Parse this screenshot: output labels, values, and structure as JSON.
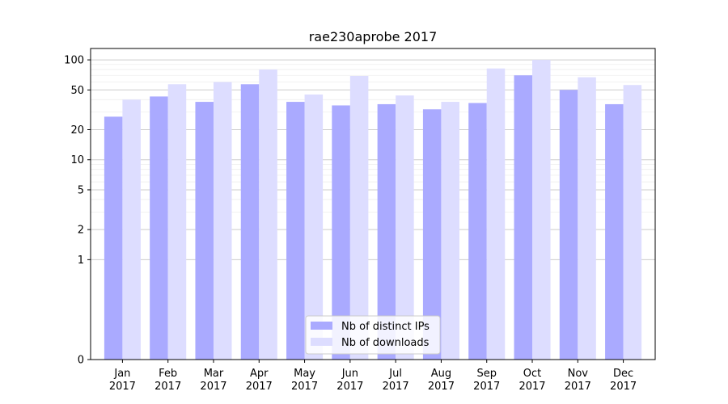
{
  "chart_data": {
    "type": "bar",
    "title": "rae230aprobe 2017",
    "xlabel": "",
    "ylabel": "",
    "y_scale": "symlog",
    "ylim": [
      0,
      130
    ],
    "grid": true,
    "legend_position": "bottom-center",
    "y_ticks": [
      0,
      1,
      2,
      5,
      10,
      20,
      50,
      100
    ],
    "y_tick_labels": [
      "0",
      "1",
      "2",
      "5",
      "10",
      "20",
      "50",
      "100"
    ],
    "categories": [
      {
        "month": "Jan",
        "year": "2017"
      },
      {
        "month": "Feb",
        "year": "2017"
      },
      {
        "month": "Mar",
        "year": "2017"
      },
      {
        "month": "Apr",
        "year": "2017"
      },
      {
        "month": "May",
        "year": "2017"
      },
      {
        "month": "Jun",
        "year": "2017"
      },
      {
        "month": "Jul",
        "year": "2017"
      },
      {
        "month": "Aug",
        "year": "2017"
      },
      {
        "month": "Sep",
        "year": "2017"
      },
      {
        "month": "Oct",
        "year": "2017"
      },
      {
        "month": "Nov",
        "year": "2017"
      },
      {
        "month": "Dec",
        "year": "2017"
      }
    ],
    "series": [
      {
        "name": "Nb of distinct IPs",
        "color": "#aaaaff",
        "values": [
          27,
          43,
          38,
          57,
          38,
          35,
          36,
          32,
          37,
          70,
          50,
          36
        ]
      },
      {
        "name": "Nb of downloads",
        "color": "#ddddff",
        "values": [
          40,
          57,
          60,
          80,
          45,
          69,
          44,
          38,
          82,
          100,
          67,
          56
        ]
      }
    ]
  }
}
